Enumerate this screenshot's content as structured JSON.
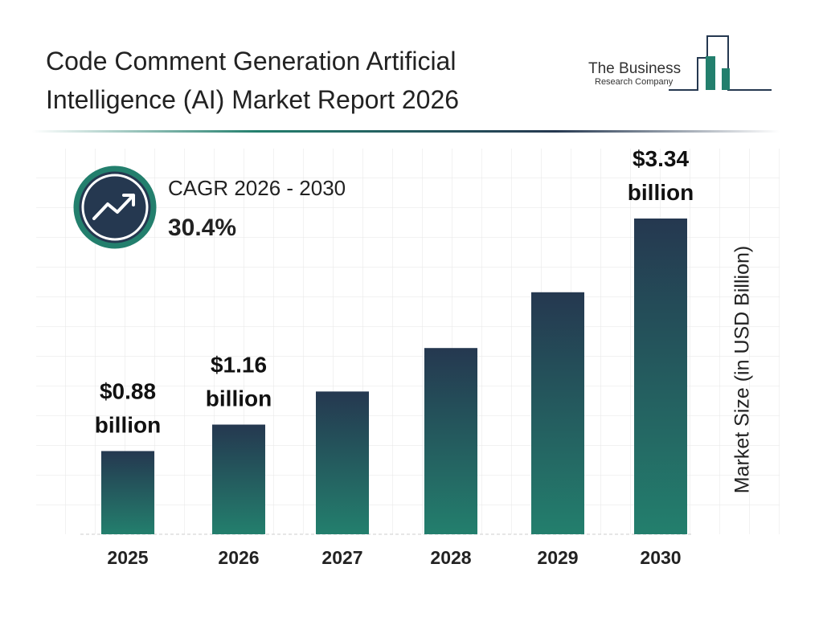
{
  "chart_data": {
    "type": "bar",
    "title": "Code Comment Generation Artificial Intelligence (AI) Market Report 2026",
    "brand": [
      "The Business",
      "Research Company"
    ],
    "cagr": {
      "label": "CAGR 2026 - 2030",
      "value": "30.4%"
    },
    "y_label": "Market Size (in USD Billion)",
    "categories": [
      "2025",
      "2026",
      "2027",
      "2028",
      "2029",
      "2030"
    ],
    "values": [
      0.88,
      1.16,
      1.51,
      1.97,
      2.56,
      3.34
    ],
    "value_labels": [
      "$0.88 billion",
      "$1.16 billion",
      null,
      null,
      null,
      "$3.34 billion"
    ],
    "color": [
      "#253850",
      "#237f6d"
    ]
  }
}
